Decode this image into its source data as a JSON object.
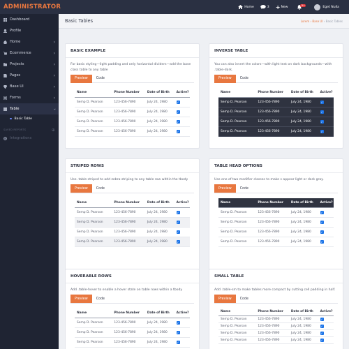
{
  "header": {
    "brand": "ADMINISTRATOR",
    "home_label": "Home",
    "messages_count": "3",
    "new_label": "New",
    "notifications_badge": "9+",
    "user_name": "Eget Nulla"
  },
  "sidebar": {
    "items": [
      {
        "label": "Dashboard",
        "icon": "dashboard-icon"
      },
      {
        "label": "Profile",
        "icon": "profile-icon"
      },
      {
        "label": "Home",
        "icon": "home-icon"
      },
      {
        "label": "Ecommerce",
        "icon": "cart-icon"
      },
      {
        "label": "Projects",
        "icon": "folder-icon"
      },
      {
        "label": "Pages",
        "icon": "pages-icon"
      },
      {
        "label": "Base UI",
        "icon": "diamond-icon"
      },
      {
        "label": "Forms",
        "icon": "forms-icon"
      },
      {
        "label": "Table",
        "icon": "table-icon"
      }
    ],
    "sub_item": "Basic Table",
    "section_label": "SAVED REPORTS",
    "integrations_label": "Integrations"
  },
  "page": {
    "title": "Basic Tables",
    "breadcrumb": [
      "Lorem",
      "Base UI",
      "Basic Tables"
    ]
  },
  "tabs": {
    "preview": "Preview",
    "code": "Code"
  },
  "table": {
    "headers": [
      "Name",
      "Phone Number",
      "Date of Birth",
      "Active?"
    ],
    "rows": [
      [
        "Semp D. Pearson",
        "123-456-7890",
        "July 24, 1980"
      ],
      [
        "Semp D. Pearson",
        "123-456-7890",
        "July 24, 1980"
      ],
      [
        "Semp D. Pearson",
        "123-456-7890",
        "July 24, 1980"
      ],
      [
        "Semp D. Pearson",
        "123-456-7890",
        "July 24, 1980"
      ]
    ]
  },
  "cards": [
    {
      "title": "BASIC EXAMPLE",
      "desc": "For basic styling—light padding and only horizontal dividers—add the base class table to any table"
    },
    {
      "title": "INVERSE TABLE",
      "desc": "You can also invert the colors—with light text on dark backgrounds—with .table-dark."
    },
    {
      "title": "STRIPED ROWS",
      "desc": "Use .table-striped to add zebra-striping to any table row within the tbody"
    },
    {
      "title": "TABLE HEAD OPTIONS",
      "desc": "Use one of two modifier classes to make s appear light or dark gray."
    },
    {
      "title": "HOVERABLE ROWS",
      "desc": "Add .table-hover to enable a hover state on table rows within a tbody"
    },
    {
      "title": "SMALL TABLE",
      "desc": "Add .table-sm to make tables more compact by cutting cell padding in half."
    }
  ],
  "colors": {
    "accent": "#e8773f",
    "sidebar": "#1f2433",
    "topbar": "#2a3042",
    "checkbox": "#1a73e8"
  }
}
